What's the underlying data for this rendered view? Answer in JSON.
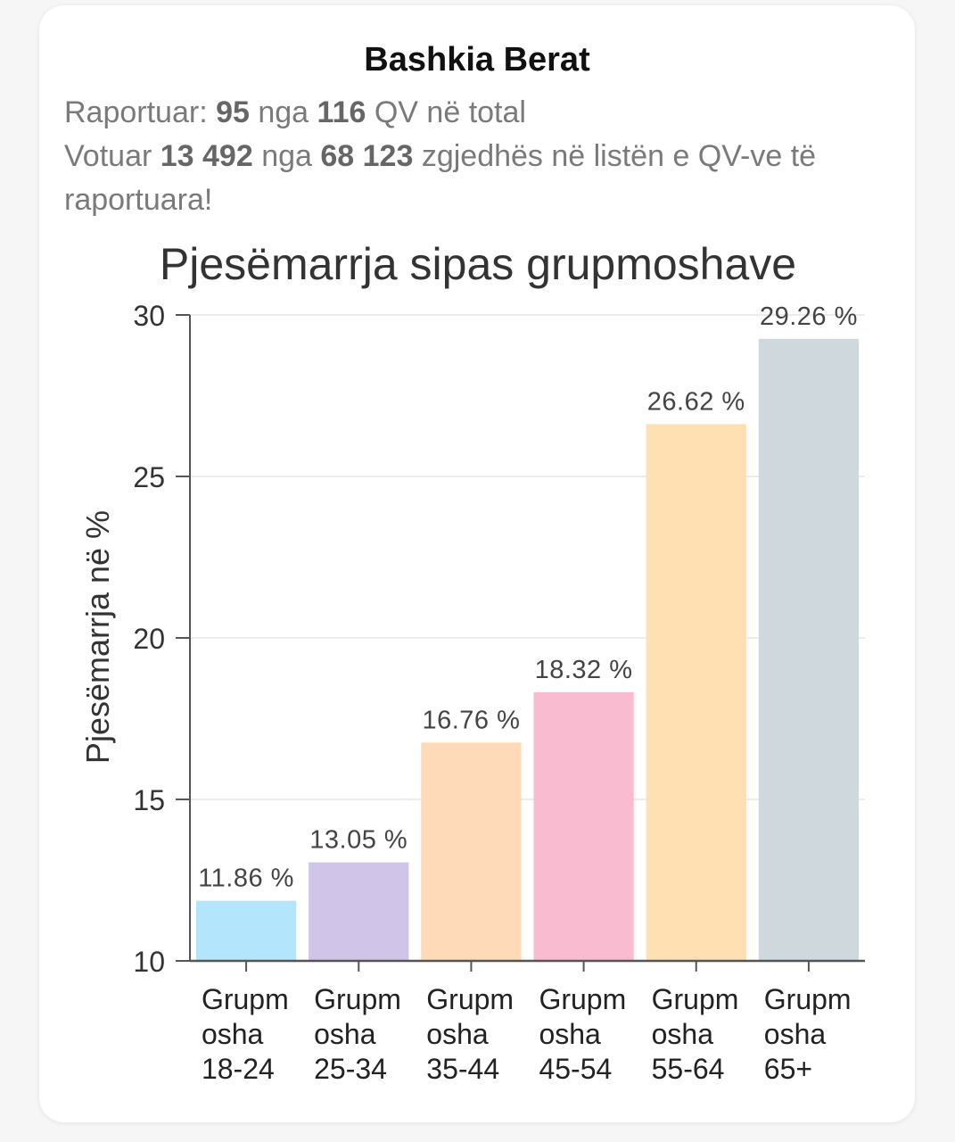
{
  "header": {
    "title": "Bashkia Berat"
  },
  "report": {
    "line1_prefix": "Raportuar: ",
    "reported_stations": "95",
    "line1_mid": " nga ",
    "total_stations": "116",
    "line1_suffix": " QV në total",
    "line2_prefix": "Votuar ",
    "voted": "13 492",
    "line2_mid": " nga ",
    "registered": "68 123",
    "line2_suffix": " zgjedhës në listën e QV-ve të raportuara!"
  },
  "chart_data": {
    "type": "bar",
    "title": "Pjesëmarrja sipas grupmoshave",
    "xlabel": "",
    "ylabel": "Pjesëmarrja në %",
    "ylim": [
      10,
      30
    ],
    "yticks": [
      10,
      15,
      20,
      25,
      30
    ],
    "grid": true,
    "categories": [
      [
        "Grupm",
        "osha",
        "18-24"
      ],
      [
        "Grupm",
        "osha",
        "25-34"
      ],
      [
        "Grupm",
        "osha",
        "35-44"
      ],
      [
        "Grupm",
        "osha",
        "45-54"
      ],
      [
        "Grupm",
        "osha",
        "55-64"
      ],
      [
        "Grupm",
        "osha",
        "65+"
      ]
    ],
    "values": [
      11.86,
      13.05,
      16.76,
      18.32,
      26.62,
      29.26
    ],
    "value_labels": [
      "11.86 %",
      "13.05 %",
      "16.76 %",
      "18.32 %",
      "26.62 %",
      "29.26 %"
    ],
    "colors": [
      "#b3e5fc",
      "#d1c4e9",
      "#ffdab9",
      "#f8bbd0",
      "#ffe0b2",
      "#cfd8dc"
    ]
  }
}
